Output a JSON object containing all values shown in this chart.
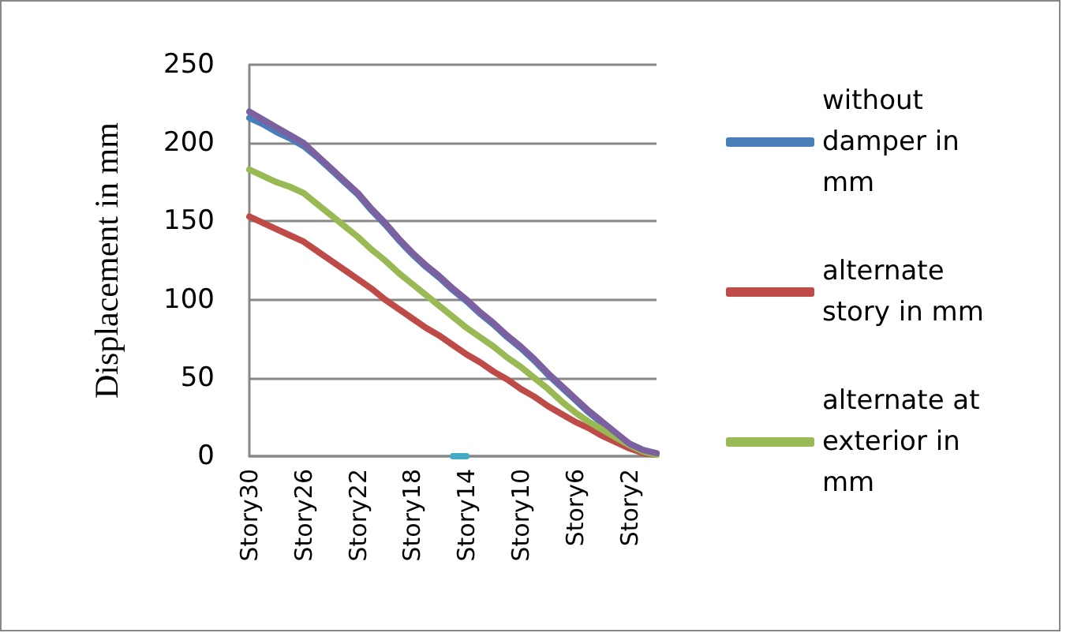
{
  "chart_data": {
    "type": "line",
    "ylabel": "Displacement in mm",
    "categories": [
      "Story30",
      null,
      null,
      null,
      "Story26",
      null,
      null,
      null,
      "Story22",
      null,
      null,
      null,
      "Story18",
      null,
      null,
      null,
      "Story14",
      null,
      null,
      null,
      "Story10",
      null,
      null,
      null,
      "Story6",
      null,
      null,
      null,
      "Story2",
      null,
      null
    ],
    "series": [
      {
        "name": "without damper in mm",
        "color": "#4a7ebb",
        "values": [
          216,
          212,
          207,
          203,
          198,
          191,
          183,
          175,
          167,
          157,
          148,
          138,
          129,
          121,
          114,
          106,
          99,
          91,
          84,
          76,
          69,
          61,
          52,
          44,
          36,
          28,
          21,
          14,
          8,
          4,
          1
        ]
      },
      {
        "name": "alternate story in mm",
        "color": "#be4b48",
        "values": [
          153,
          149,
          145,
          141,
          137,
          131,
          125,
          119,
          113,
          107,
          100,
          94,
          88,
          82,
          77,
          71,
          65,
          60,
          54,
          49,
          43,
          38,
          32,
          27,
          22,
          18,
          13,
          9,
          5,
          2,
          1
        ]
      },
      {
        "name": "alternate at exterior in mm",
        "color": "#98b954",
        "values": [
          183,
          179,
          175,
          172,
          168,
          161,
          154,
          147,
          140,
          132,
          125,
          117,
          110,
          103,
          96,
          89,
          82,
          76,
          70,
          63,
          57,
          50,
          43,
          35,
          28,
          22,
          17,
          12,
          7,
          3,
          1
        ]
      },
      {
        "color": "#7d60a0",
        "values": [
          220,
          215,
          210,
          205,
          200,
          192,
          184,
          176,
          168,
          158,
          149,
          139,
          130,
          122,
          115,
          107,
          100,
          92,
          85,
          77,
          70,
          62,
          53,
          45,
          37,
          29,
          22,
          15,
          8,
          4,
          2
        ]
      },
      {
        "color": "#46aac5",
        "values": [
          null,
          null,
          null,
          null,
          null,
          null,
          null,
          null,
          null,
          null,
          null,
          null,
          null,
          null,
          null,
          0,
          0,
          null,
          null,
          null,
          null,
          null,
          null,
          null,
          null,
          null,
          null,
          null,
          null,
          null,
          null
        ]
      }
    ],
    "ylim": [
      0,
      250
    ],
    "yticks": [
      0,
      50,
      100,
      150,
      200,
      250
    ],
    "grid": "y",
    "legend": "right",
    "marker": "none",
    "line_style": "solid"
  }
}
